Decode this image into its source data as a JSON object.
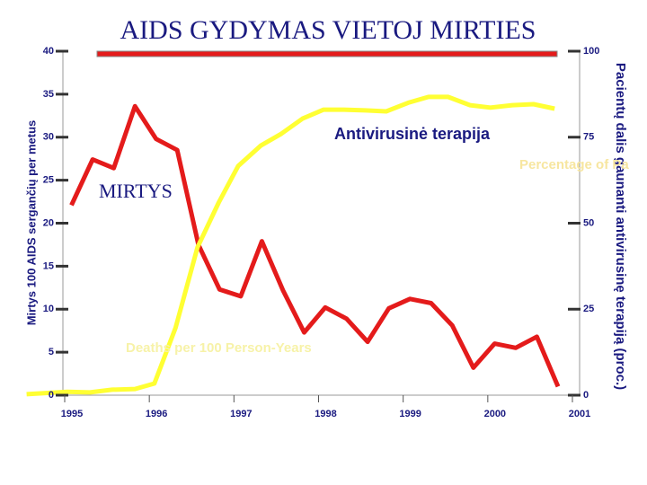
{
  "chart_data": {
    "type": "line",
    "title": "AIDS GYDYMAS VIETOJ MIRTIES",
    "y_label": "Mirtys 100 AIDS sergančių per metus",
    "y2_label": "Pacientų dalis gaunanti antivirusinę terapiją (proc.)",
    "annotations": [
      "Antivirusinė terapija",
      "MIRTYS",
      "Deaths per 100 Person-Years",
      "Percentage of Pa"
    ],
    "xlim": [
      1995,
      2001
    ],
    "xticks": [
      1995,
      1996,
      1997,
      1998,
      1999,
      2000,
      2001
    ],
    "ylim": [
      0,
      40
    ],
    "yticks": [
      0,
      5,
      10,
      15,
      20,
      25,
      30,
      35,
      40
    ],
    "y2lim": [
      0,
      100
    ],
    "y2ticks": [
      0,
      25,
      50,
      75,
      100
    ],
    "series": [
      {
        "name": "MIRTYS",
        "color": "#e41b1b",
        "x": [
          1995.08,
          1995.33,
          1995.58,
          1995.83,
          1996.08,
          1996.33,
          1996.58,
          1996.83,
          1997.08,
          1997.33,
          1997.58,
          1997.83,
          1998.08,
          1998.33,
          1998.58,
          1998.83,
          1999.08,
          1999.33,
          1999.58,
          1999.83,
          2000.08,
          2000.33,
          2000.58,
          2000.83
        ],
        "values": [
          22.1,
          27.4,
          26.4,
          33.6,
          29.8,
          28.5,
          17.5,
          12.3,
          11.5,
          17.9,
          12.2,
          7.3,
          10.2,
          8.9,
          6.2,
          10.1,
          11.2,
          10.7,
          8.1,
          3.2,
          6.0,
          5.5,
          6.8,
          1.0
        ]
      },
      {
        "name": "Antivirusinė terapija",
        "color": "#ffff33",
        "axis": "y2",
        "x": [
          1994.55,
          1995.03,
          1995.3,
          1995.56,
          1995.83,
          1996.06,
          1996.31,
          1996.57,
          1996.82,
          1997.05,
          1997.32,
          1997.56,
          1997.81,
          1998.06,
          1998.3,
          1998.55,
          1998.8,
          1999.06,
          1999.3,
          1999.53,
          1999.79,
          2000.03,
          2000.29,
          2000.54,
          2000.79
        ],
        "values": [
          0.3,
          1,
          0.8,
          1.6,
          1.8,
          3.4,
          19.6,
          43,
          56,
          66.6,
          72.6,
          76,
          80.4,
          83,
          83,
          82.8,
          82.5,
          85,
          86.7,
          86.7,
          84.3,
          83.6,
          84.3,
          84.6,
          83.3
        ]
      }
    ]
  }
}
